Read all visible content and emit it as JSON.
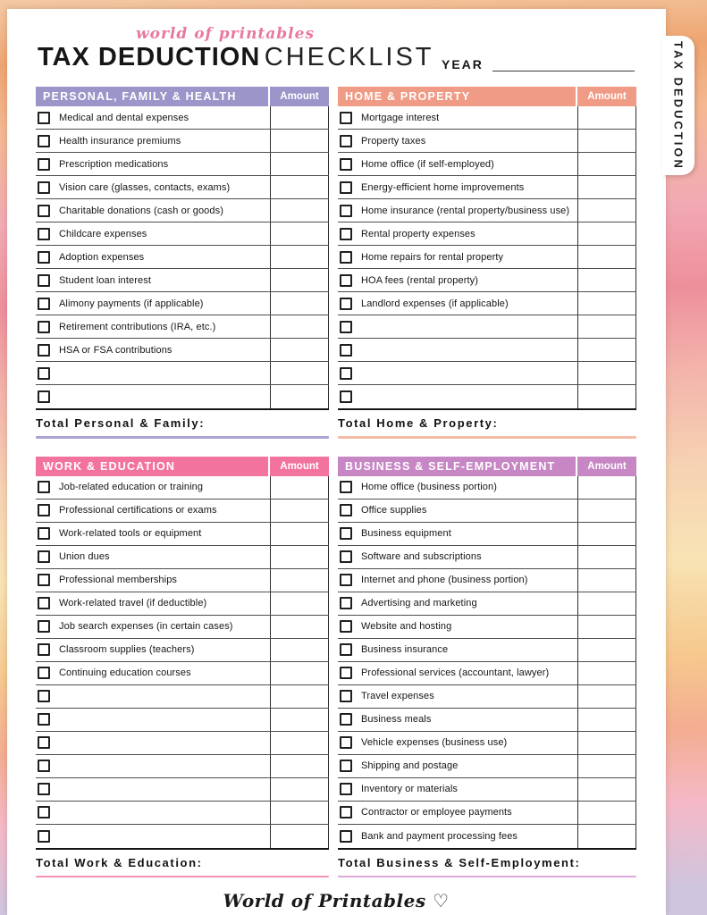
{
  "page": {
    "brand_script": "world of printables",
    "title_bold": "TAX DEDUCTION",
    "title_light": "CHECKLIST",
    "year_label": "YEAR",
    "side_tab_label": "TAX DEDUCTION",
    "footer_script": "World of Printables ♡"
  },
  "labels": {
    "amount": "Amount"
  },
  "sections": [
    {
      "id": "personal-family-health",
      "title": "PERSONAL, FAMILY & HEALTH",
      "color": "#9B95C9",
      "underline": "#ABA5D5",
      "total_label": "Total Personal & Family:",
      "empty_rows": 2,
      "items": [
        "Medical and dental expenses",
        "Health insurance premiums",
        "Prescription medications",
        "Vision care (glasses, contacts, exams)",
        "Charitable donations (cash or goods)",
        "Childcare expenses",
        "Adoption expenses",
        "Student loan interest",
        "Alimony payments (if applicable)",
        "Retirement contributions (IRA, etc.)",
        "HSA or FSA contributions"
      ]
    },
    {
      "id": "home-property",
      "title": "HOME & PROPERTY",
      "color": "#F09B85",
      "underline": "#F5BCA7",
      "total_label": "Total Home & Property:",
      "empty_rows": 4,
      "items": [
        "Mortgage interest",
        "Property taxes",
        "Home office (if self-employed)",
        "Energy-efficient home improvements",
        "Home insurance (rental property/business use)",
        "Rental property expenses",
        "Home repairs for rental property",
        "HOA fees (rental property)",
        "Landlord expenses (if applicable)"
      ]
    },
    {
      "id": "work-education",
      "title": "WORK & EDUCATION",
      "color": "#F2749E",
      "underline": "#F591B3",
      "total_label": "Total Work & Education:",
      "empty_rows": 7,
      "items": [
        "Job-related education or training",
        "Professional certifications or exams",
        "Work-related tools or equipment",
        "Union dues",
        "Professional memberships",
        "Work-related travel (if deductible)",
        "Job search expenses (in certain cases)",
        "Classroom supplies (teachers)",
        "Continuing education courses"
      ]
    },
    {
      "id": "business-self-employment",
      "title": "BUSINESS & SELF-EMPLOYMENT",
      "color": "#C687C4",
      "underline": "#DCA9DA",
      "total_label": "Total Business & Self-Employment:",
      "empty_rows": 0,
      "items": [
        "Home office (business portion)",
        "Office supplies",
        "Business equipment",
        "Software and subscriptions",
        "Internet and phone (business portion)",
        "Advertising and marketing",
        "Website and hosting",
        "Business insurance",
        "Professional services (accountant, lawyer)",
        "Travel expenses",
        "Business meals",
        "Vehicle expenses (business use)",
        "Shipping and postage",
        "Inventory or materials",
        "Contractor or employee payments",
        "Bank and payment processing fees"
      ]
    }
  ]
}
